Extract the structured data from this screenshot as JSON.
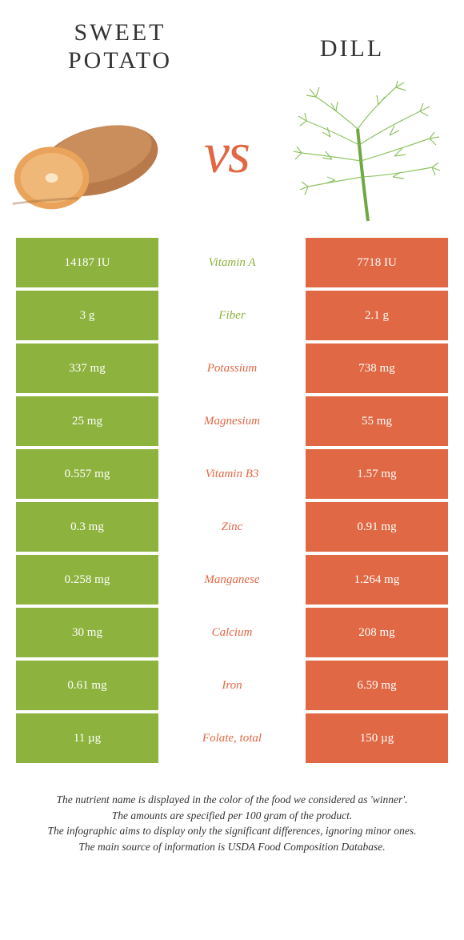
{
  "colors": {
    "green": "#8db33e",
    "orange": "#e06844",
    "text_dark": "#333333",
    "white": "#ffffff"
  },
  "header": {
    "left_title_line1": "SWEET",
    "left_title_line2": "POTATO",
    "right_title": "DILL",
    "vs": "vs"
  },
  "rows": [
    {
      "nutrient": "Vitamin A",
      "left": "14187 IU",
      "right": "7718 IU",
      "winner": "left"
    },
    {
      "nutrient": "Fiber",
      "left": "3 g",
      "right": "2.1 g",
      "winner": "left"
    },
    {
      "nutrient": "Potassium",
      "left": "337 mg",
      "right": "738 mg",
      "winner": "right"
    },
    {
      "nutrient": "Magnesium",
      "left": "25 mg",
      "right": "55 mg",
      "winner": "right"
    },
    {
      "nutrient": "Vitamin B3",
      "left": "0.557 mg",
      "right": "1.57 mg",
      "winner": "right"
    },
    {
      "nutrient": "Zinc",
      "left": "0.3 mg",
      "right": "0.91 mg",
      "winner": "right"
    },
    {
      "nutrient": "Manganese",
      "left": "0.258 mg",
      "right": "1.264 mg",
      "winner": "right"
    },
    {
      "nutrient": "Calcium",
      "left": "30 mg",
      "right": "208 mg",
      "winner": "right"
    },
    {
      "nutrient": "Iron",
      "left": "0.61 mg",
      "right": "6.59 mg",
      "winner": "right"
    },
    {
      "nutrient": "Folate, total",
      "left": "11 µg",
      "right": "150 µg",
      "winner": "right"
    }
  ],
  "footer": {
    "line1": "The nutrient name is displayed in the color of the food we considered as 'winner'.",
    "line2": "The amounts are specified per 100 gram of the product.",
    "line3": "The infographic aims to display only the significant differences, ignoring minor ones.",
    "line4": "The main source of information is USDA Food Composition Database."
  }
}
